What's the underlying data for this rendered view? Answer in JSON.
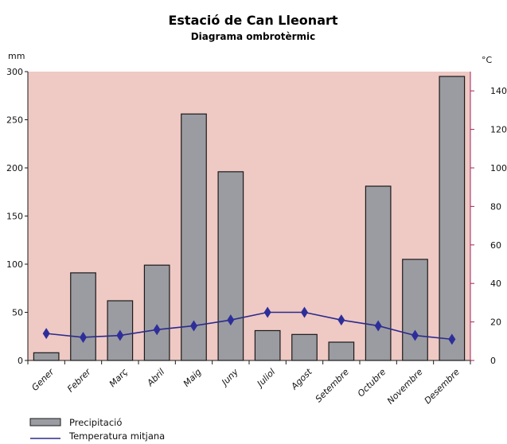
{
  "chart_data": {
    "type": "bar",
    "title": "Estació de Can Lleonart",
    "subtitle": "Diagrama ombrotèrmic",
    "categories": [
      "Gener",
      "Febrer",
      "Març",
      "Abril",
      "Maig",
      "Juny",
      "Juliol",
      "Agost",
      "Setembre",
      "Octubre",
      "Novembre",
      "Desembre"
    ],
    "series": [
      {
        "name": "Precipitació",
        "type": "bar",
        "axis": "left",
        "values": [
          8,
          91,
          62,
          99,
          256,
          196,
          31,
          27,
          19,
          181,
          105,
          295
        ]
      },
      {
        "name": "Temperatura mitjana",
        "type": "line",
        "axis": "right",
        "values": [
          14,
          12,
          13,
          16,
          18,
          21,
          25,
          25,
          21,
          18,
          13,
          11
        ]
      }
    ],
    "y_left": {
      "label": "mm",
      "min": 0,
      "max": 300,
      "ticks": [
        0,
        50,
        100,
        150,
        200,
        250,
        300
      ]
    },
    "y_right": {
      "label": "°C",
      "min": 0,
      "max": 150,
      "ticks": [
        0,
        20,
        40,
        60,
        80,
        100,
        120,
        140
      ]
    },
    "legend_position": "bottom-left",
    "grid": false,
    "colors": {
      "plot_background": "#efc9c4",
      "bar_fill": "#9b9ca1",
      "bar_stroke": "#1a1a1a",
      "line": "#2b2b8c",
      "marker": "#2e2e9a",
      "axis": "#1a1a1a",
      "right_axis": "#a0245a"
    }
  }
}
